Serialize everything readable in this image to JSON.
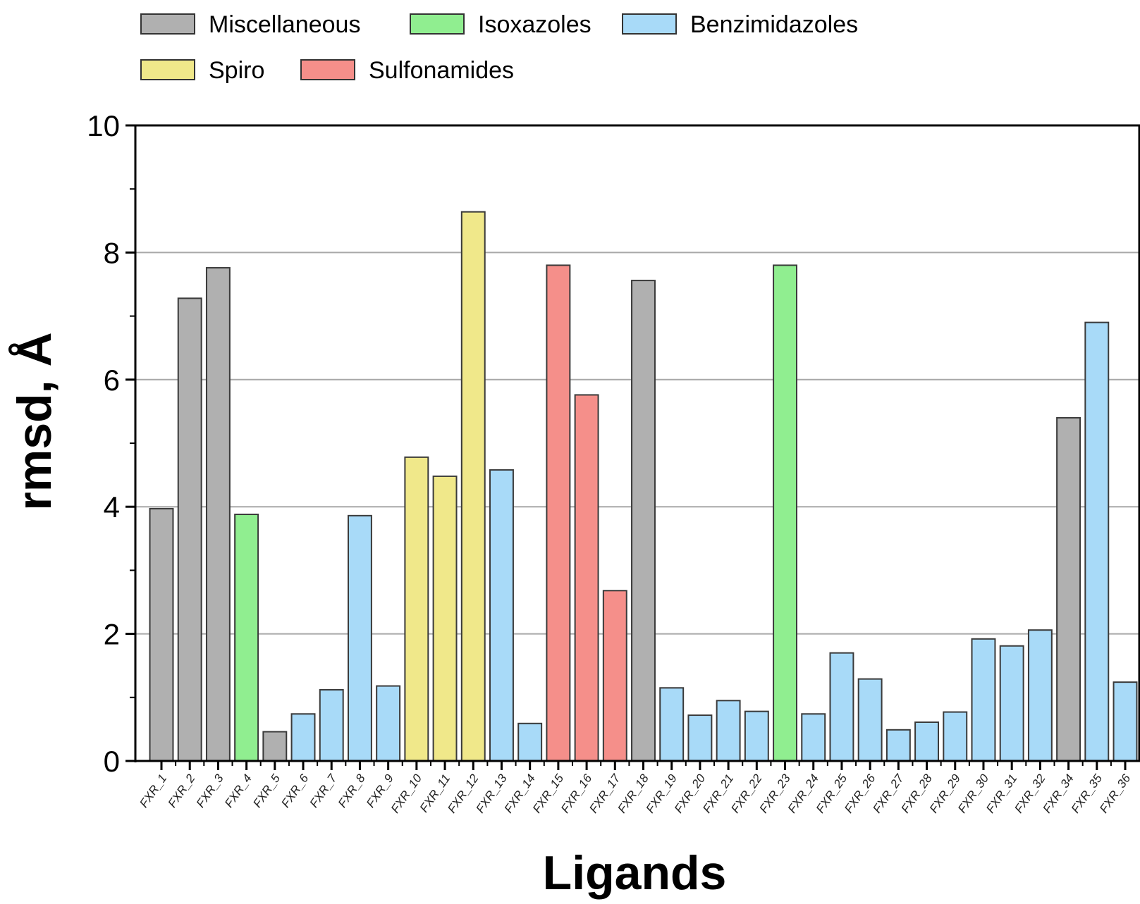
{
  "chart_data": {
    "type": "bar",
    "xlabel": "Ligands",
    "ylabel": "rmsd, Å",
    "ylim": [
      0,
      10
    ],
    "yticks": [
      0,
      2,
      4,
      6,
      8,
      10
    ],
    "grid": "horizontal",
    "legend_position": "top-left",
    "groups": [
      {
        "name": "Miscellaneous",
        "color": "#b0b0b0"
      },
      {
        "name": "Isoxazoles",
        "color": "#90ee90"
      },
      {
        "name": "Benzimidazoles",
        "color": "#a8daf8"
      },
      {
        "name": "Spiro",
        "color": "#f0e88a"
      },
      {
        "name": "Sulfonamides",
        "color": "#f58f8a"
      }
    ],
    "categories": [
      "FXR_1",
      "FXR_2",
      "FXR_3",
      "FXR_4",
      "FXR_5",
      "FXR_6",
      "FXR_7",
      "FXR_8",
      "FXR_9",
      "FXR_10",
      "FXR_11",
      "FXR_12",
      "FXR_13",
      "FXR_14",
      "FXR_15",
      "FXR_16",
      "FXR_17",
      "FXR_18",
      "FXR_19",
      "FXR_20",
      "FXR_21",
      "FXR_22",
      "FXR_23",
      "FXR_24",
      "FXR_25",
      "FXR_26",
      "FXR_27",
      "FXR_28",
      "FXR_29",
      "FXR_30",
      "FXR_31",
      "FXR_32",
      "FXR_34",
      "FXR_35",
      "FXR_36"
    ],
    "values": [
      3.97,
      7.28,
      7.76,
      3.88,
      0.46,
      0.74,
      1.12,
      3.86,
      1.18,
      4.78,
      4.48,
      8.64,
      4.58,
      0.59,
      7.8,
      5.76,
      2.68,
      7.56,
      1.15,
      0.72,
      0.95,
      0.78,
      7.8,
      0.74,
      1.7,
      1.29,
      0.49,
      0.61,
      0.77,
      1.92,
      1.81,
      2.06,
      5.4,
      6.9,
      1.24
    ],
    "group_of": [
      "Miscellaneous",
      "Miscellaneous",
      "Miscellaneous",
      "Isoxazoles",
      "Miscellaneous",
      "Benzimidazoles",
      "Benzimidazoles",
      "Benzimidazoles",
      "Benzimidazoles",
      "Spiro",
      "Spiro",
      "Spiro",
      "Benzimidazoles",
      "Benzimidazoles",
      "Sulfonamides",
      "Sulfonamides",
      "Sulfonamides",
      "Miscellaneous",
      "Benzimidazoles",
      "Benzimidazoles",
      "Benzimidazoles",
      "Benzimidazoles",
      "Isoxazoles",
      "Benzimidazoles",
      "Benzimidazoles",
      "Benzimidazoles",
      "Benzimidazoles",
      "Benzimidazoles",
      "Benzimidazoles",
      "Benzimidazoles",
      "Benzimidazoles",
      "Benzimidazoles",
      "Miscellaneous",
      "Benzimidazoles",
      "Benzimidazoles"
    ]
  }
}
